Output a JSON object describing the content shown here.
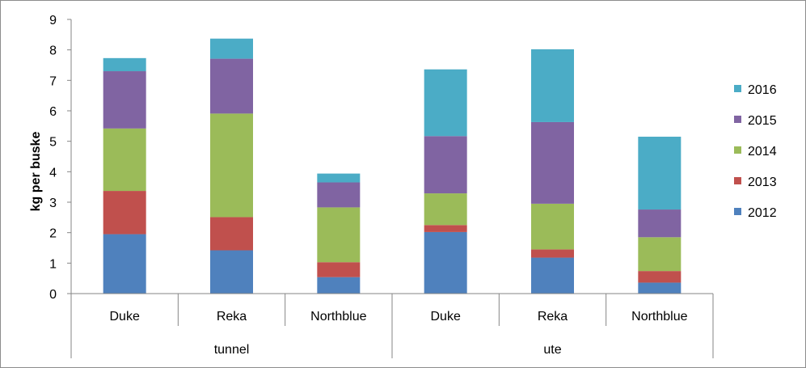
{
  "colors": {
    "2012": "#4f81bd",
    "2013": "#c0504d",
    "2014": "#9bbb59",
    "2015": "#8064a2",
    "2016": "#4bacc6",
    "axis": "#868686"
  },
  "chart_data": {
    "type": "bar",
    "stacked": true,
    "ylabel": "kg per buske",
    "ylim": [
      0,
      9
    ],
    "yticks": [
      0,
      1,
      2,
      3,
      4,
      5,
      6,
      7,
      8,
      9
    ],
    "groups": [
      {
        "label": "tunnel",
        "categories": [
          "Duke",
          "Reka",
          "Northblue"
        ]
      },
      {
        "label": "ute",
        "categories": [
          "Duke",
          "Reka",
          "Northblue"
        ]
      }
    ],
    "categories": [
      "Duke",
      "Reka",
      "Northblue",
      "Duke",
      "Reka",
      "Northblue"
    ],
    "series": [
      {
        "name": "2012",
        "values": [
          1.95,
          1.42,
          0.54,
          2.02,
          1.18,
          0.36
        ]
      },
      {
        "name": "2013",
        "values": [
          1.42,
          1.09,
          0.49,
          0.23,
          0.27,
          0.38
        ]
      },
      {
        "name": "2014",
        "values": [
          2.05,
          3.4,
          1.8,
          1.04,
          1.5,
          1.11
        ]
      },
      {
        "name": "2015",
        "values": [
          1.88,
          1.8,
          0.82,
          1.88,
          2.68,
          0.91
        ]
      },
      {
        "name": "2016",
        "values": [
          0.43,
          0.66,
          0.29,
          2.19,
          2.39,
          2.39
        ]
      }
    ],
    "legend": {
      "position": "right",
      "order": [
        "2016",
        "2015",
        "2014",
        "2013",
        "2012"
      ]
    },
    "grid": false
  }
}
